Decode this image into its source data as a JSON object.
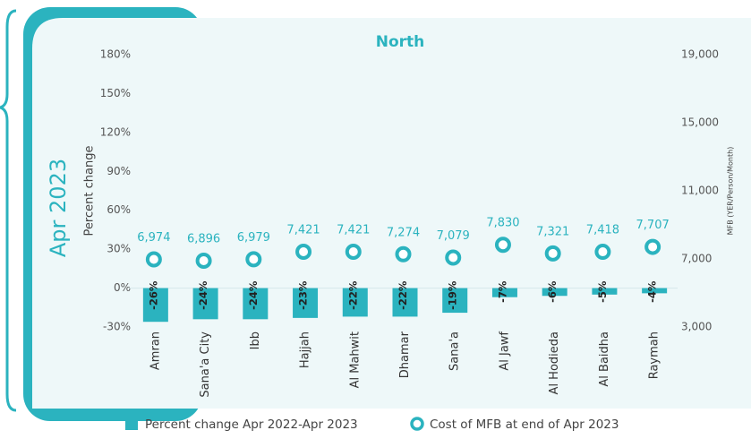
{
  "chart_data": {
    "type": "bar",
    "title": "North",
    "period_label": "Apr 2023",
    "ylabel": "Percent change",
    "y2label": "MFB (YER/Person/Month)",
    "categories": [
      "Amran",
      "Sana'a City",
      "Ibb",
      "Hajjah",
      "Al Mahwit",
      "Dhamar",
      "Sana'a",
      "Al Jawf",
      "Al Hodieda",
      "Al Baidha",
      "Raymah"
    ],
    "series": [
      {
        "name": "Percent change Apr 2022-Apr 2023",
        "color": "#2bb3bf",
        "values": [
          -26,
          -24,
          -24,
          -23,
          -22,
          -22,
          -19,
          -7,
          -6,
          -5,
          -4
        ],
        "value_labels": [
          "-26%",
          "-24%",
          "-24%",
          "-23%",
          "-22%",
          "-22%",
          "-19%",
          "-7%",
          "-6%",
          "-5%",
          "-4%"
        ]
      },
      {
        "name": "Cost of MFB at end of Apr 2023",
        "color": "#2bb3bf",
        "axis": "y2",
        "values": [
          6974,
          6896,
          6979,
          7421,
          7421,
          7274,
          7079,
          7830,
          7321,
          7418,
          7707
        ],
        "value_labels": [
          "6,974",
          "6,896",
          "6,979",
          "7,421",
          "7,421",
          "7,274",
          "7,079",
          "7,830",
          "7,321",
          "7,418",
          "7,707"
        ]
      }
    ],
    "ylim": [
      -30,
      180
    ],
    "yticks": [
      {
        "value": -30,
        "label": "-30%"
      },
      {
        "value": 0,
        "label": "0%"
      },
      {
        "value": 30,
        "label": "30%"
      },
      {
        "value": 60,
        "label": "60%"
      },
      {
        "value": 90,
        "label": "90%"
      },
      {
        "value": 120,
        "label": "120%"
      },
      {
        "value": 150,
        "label": "150%"
      },
      {
        "value": 180,
        "label": "180%"
      }
    ],
    "y2lim": [
      3000,
      19000
    ],
    "y2ticks": [
      {
        "value": 3000,
        "label": "3,000"
      },
      {
        "value": 7000,
        "label": "7,000"
      },
      {
        "value": 11000,
        "label": "11,000"
      },
      {
        "value": 15000,
        "label": "15,000"
      },
      {
        "value": 19000,
        "label": "19,000"
      }
    ],
    "grid": false
  }
}
